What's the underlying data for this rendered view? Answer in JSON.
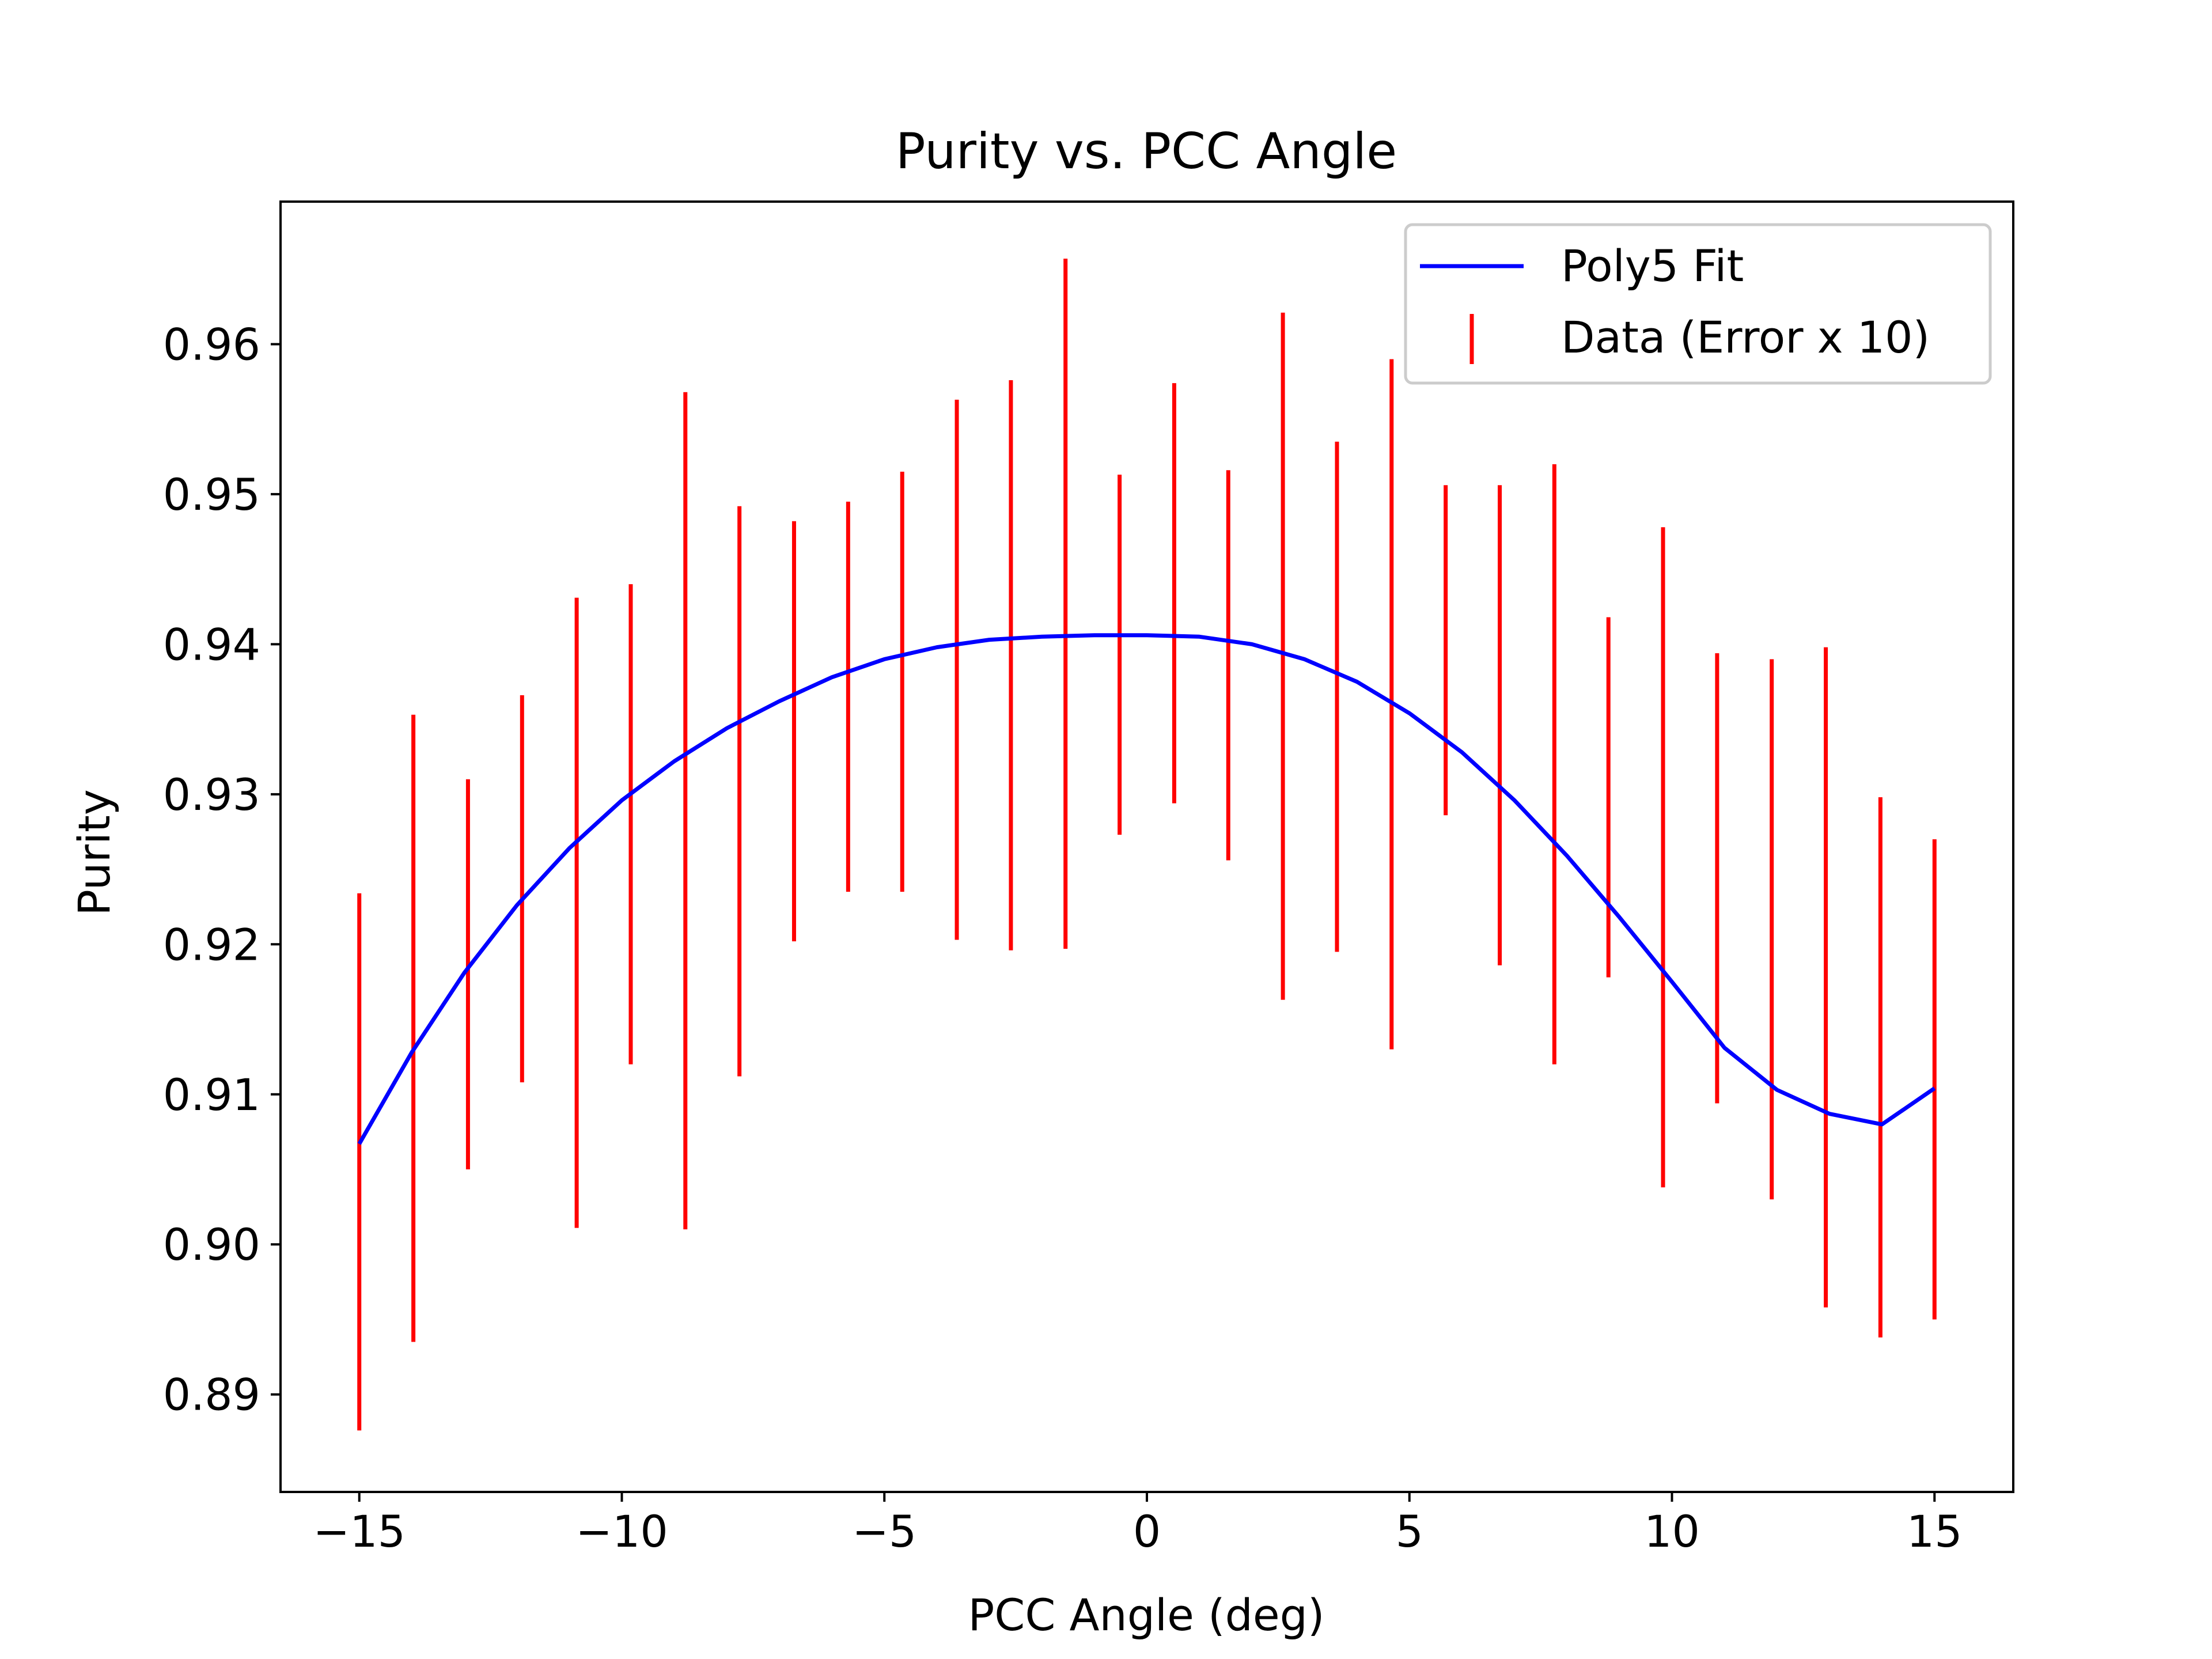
{
  "chart_data": {
    "type": "line",
    "title": "Purity vs. PCC Angle",
    "xlabel": "PCC Angle (deg)",
    "ylabel": "Purity",
    "xlim": [
      -16.5,
      16.5
    ],
    "ylim": [
      0.8835,
      0.9695
    ],
    "x_ticks": [
      -15,
      -10,
      -5,
      0,
      5,
      10,
      15
    ],
    "x_tick_labels": [
      "−15",
      "−10",
      "−5",
      "0",
      "5",
      "10",
      "15"
    ],
    "y_ticks": [
      0.89,
      0.9,
      0.91,
      0.92,
      0.93,
      0.94,
      0.95,
      0.96
    ],
    "y_tick_labels": [
      "0.89",
      "0.90",
      "0.91",
      "0.92",
      "0.93",
      "0.94",
      "0.95",
      "0.96"
    ],
    "grid": false,
    "legend_position": "top-right",
    "series": [
      {
        "name": "Poly5 Fit",
        "kind": "line",
        "color": "#0000ff",
        "x": [
          -15,
          -14,
          -13,
          -12,
          -11,
          -10,
          -9,
          -8,
          -7,
          -6,
          -5,
          -4,
          -3,
          -2,
          -1,
          0,
          1,
          2,
          3,
          4,
          5,
          6,
          7,
          8,
          9,
          10,
          11,
          12,
          13,
          14,
          15
        ],
        "y": [
          0.9067,
          0.9128,
          0.9181,
          0.9226,
          0.9264,
          0.9296,
          0.9322,
          0.9344,
          0.9362,
          0.9378,
          0.939,
          0.9398,
          0.9403,
          0.9405,
          0.9406,
          0.9406,
          0.9405,
          0.94,
          0.939,
          0.9375,
          0.9354,
          0.9328,
          0.9296,
          0.9259,
          0.9218,
          0.9175,
          0.9131,
          0.9103,
          0.9087,
          0.908,
          0.9104
        ]
      },
      {
        "name": "Data (Error x 10)",
        "kind": "errorbar",
        "color": "#ff0000",
        "x": [
          -15,
          -13.97,
          -12.93,
          -11.9,
          -10.86,
          -9.83,
          -8.79,
          -7.76,
          -6.72,
          -5.69,
          -4.66,
          -3.62,
          -2.59,
          -1.55,
          -0.52,
          0.52,
          1.55,
          2.59,
          3.62,
          4.66,
          5.69,
          6.72,
          7.76,
          8.79,
          9.83,
          10.86,
          11.9,
          12.93,
          13.97,
          15
        ],
        "y": [
          0.9055,
          0.9144,
          0.918,
          0.9237,
          0.9221,
          0.928,
          0.9289,
          0.9302,
          0.9342,
          0.9365,
          0.9375,
          0.9383,
          0.9386,
          0.9427,
          0.9393,
          0.9434,
          0.9386,
          0.9392,
          0.9365,
          0.936,
          0.9396,
          0.9346,
          0.932,
          0.9298,
          0.9258,
          0.9244,
          0.921,
          0.9178,
          0.9118,
          0.911
        ],
        "errors": [
          0.0179,
          0.0209,
          0.013,
          0.0129,
          0.021,
          0.016,
          0.0279,
          0.019,
          0.014,
          0.013,
          0.014,
          0.018,
          0.019,
          0.023,
          0.012,
          0.014,
          0.013,
          0.0229,
          0.017,
          0.023,
          0.011,
          0.016,
          0.02,
          0.012,
          0.022,
          0.015,
          0.018,
          0.022,
          0.018,
          0.016
        ]
      }
    ]
  }
}
